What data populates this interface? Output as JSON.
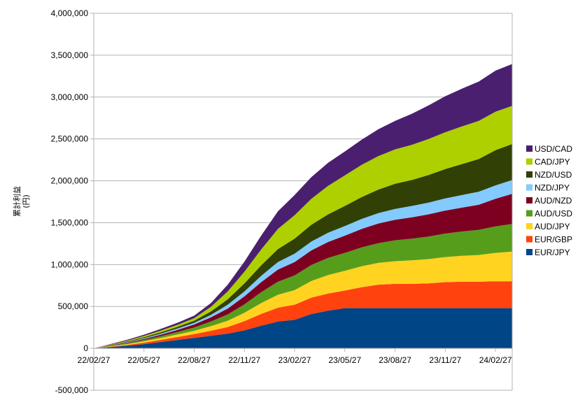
{
  "chart_data": {
    "type": "area",
    "stacked": true,
    "ylabel_main": "累計利益",
    "ylabel_unit": "(円)",
    "ylim": [
      -500000,
      4000000
    ],
    "yticks": [
      {
        "value": 4000000,
        "label": "4,000,000"
      },
      {
        "value": 3500000,
        "label": "3,500,000"
      },
      {
        "value": 3000000,
        "label": "3,000,000"
      },
      {
        "value": 2500000,
        "label": "2,500,000"
      },
      {
        "value": 2000000,
        "label": "2,000,000"
      },
      {
        "value": 1500000,
        "label": "1,500,000"
      },
      {
        "value": 1000000,
        "label": "1,000,000"
      },
      {
        "value": 500000,
        "label": "500,000"
      },
      {
        "value": 0,
        "label": "0"
      },
      {
        "value": -500000,
        "label": "-500,000"
      }
    ],
    "xticks": [
      "22/02/27",
      "22/05/27",
      "22/08/27",
      "22/11/27",
      "23/02/27",
      "23/05/27",
      "23/08/27",
      "23/11/27",
      "24/02/27"
    ],
    "grid": true,
    "legend_position": "right",
    "x": [
      "22/02/27",
      "22/03/27",
      "22/04/27",
      "22/05/27",
      "22/06/27",
      "22/07/27",
      "22/08/27",
      "22/09/27",
      "22/10/27",
      "22/11/27",
      "22/12/27",
      "23/01/27",
      "23/02/27",
      "23/03/27",
      "23/04/27",
      "23/05/27",
      "23/06/27",
      "23/07/27",
      "23/08/27",
      "23/09/27",
      "23/10/27",
      "23/11/27",
      "23/12/27",
      "24/01/27",
      "24/02/27",
      "24/03/27"
    ],
    "series": [
      {
        "name": "EUR/JPY",
        "color": "#004586",
        "values": [
          0,
          15000,
          30000,
          50000,
          75000,
          100000,
          125000,
          150000,
          175000,
          215000,
          270000,
          320000,
          340000,
          410000,
          450000,
          480000,
          480000,
          480000,
          480000,
          480000,
          480000,
          480000,
          480000,
          480000,
          480000,
          480000
        ]
      },
      {
        "name": "EUR/GBP",
        "color": "#FF420E",
        "values": [
          0,
          5000,
          10000,
          18000,
          26000,
          35000,
          45000,
          60000,
          80000,
          110000,
          140000,
          165000,
          180000,
          195000,
          205000,
          210000,
          250000,
          280000,
          290000,
          290000,
          295000,
          310000,
          315000,
          315000,
          320000,
          320000
        ]
      },
      {
        "name": "AUD/JPY",
        "color": "#FFD320",
        "values": [
          0,
          5000,
          10000,
          16000,
          22000,
          30000,
          40000,
          55000,
          75000,
          100000,
          130000,
          155000,
          175000,
          200000,
          220000,
          235000,
          250000,
          260000,
          270000,
          280000,
          290000,
          300000,
          310000,
          320000,
          340000,
          355000
        ]
      },
      {
        "name": "AUD/USD",
        "color": "#579D1C",
        "values": [
          0,
          5000,
          10000,
          16000,
          22000,
          30000,
          40000,
          55000,
          75000,
          100000,
          130000,
          155000,
          175000,
          190000,
          205000,
          215000,
          225000,
          235000,
          250000,
          260000,
          270000,
          280000,
          290000,
          300000,
          315000,
          330000
        ]
      },
      {
        "name": "AUD/NZD",
        "color": "#7E0021",
        "values": [
          0,
          4000,
          8000,
          12000,
          18000,
          25000,
          35000,
          50000,
          70000,
          95000,
          120000,
          145000,
          160000,
          175000,
          190000,
          205000,
          220000,
          235000,
          245000,
          255000,
          265000,
          275000,
          285000,
          300000,
          330000,
          360000
        ]
      },
      {
        "name": "NZD/JPY",
        "color": "#83CAFF",
        "values": [
          0,
          3000,
          6000,
          9000,
          12000,
          16000,
          20000,
          30000,
          45000,
          60000,
          75000,
          90000,
          100000,
          105000,
          110000,
          115000,
          120000,
          125000,
          130000,
          135000,
          140000,
          145000,
          150000,
          155000,
          160000,
          165000
        ]
      },
      {
        "name": "NZD/USD",
        "color": "#314004",
        "values": [
          0,
          4000,
          8000,
          12000,
          16000,
          20000,
          25000,
          40000,
          65000,
          95000,
          125000,
          155000,
          180000,
          200000,
          220000,
          240000,
          260000,
          280000,
          300000,
          310000,
          330000,
          350000,
          370000,
          390000,
          420000,
          430000
        ]
      },
      {
        "name": "CAD/JPY",
        "color": "#AECF00",
        "values": [
          0,
          5000,
          10000,
          15000,
          20000,
          25000,
          30000,
          55000,
          95000,
          140000,
          190000,
          240000,
          280000,
          310000,
          340000,
          365000,
          385000,
          400000,
          410000,
          420000,
          430000,
          440000,
          450000,
          455000,
          460000,
          455000
        ]
      },
      {
        "name": "USD/CAD",
        "color": "#4B1F6F",
        "values": [
          0,
          5000,
          10000,
          15000,
          20000,
          25000,
          30000,
          45000,
          80000,
          120000,
          165000,
          210000,
          240000,
          260000,
          275000,
          285000,
          300000,
          320000,
          340000,
          370000,
          400000,
          430000,
          450000,
          470000,
          490000,
          500000
        ]
      }
    ]
  }
}
